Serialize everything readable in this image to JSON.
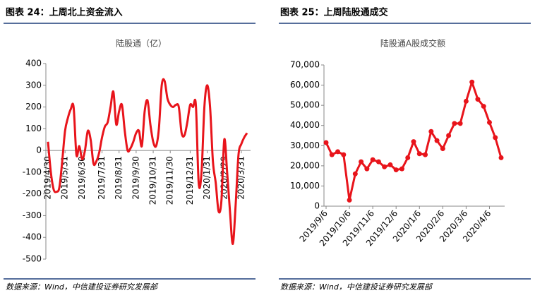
{
  "figures": [
    {
      "heading": "图表 24：上周北上资金流入",
      "source": "数据来源：Wind，中信建投证券研究发展部"
    },
    {
      "heading": "图表 25：上周陆股通成交",
      "source": "数据来源：Wind，中信建投证券研究发展部"
    }
  ],
  "chart_data": [
    {
      "type": "line",
      "title": "陆股通（亿）",
      "color": "#e8141b",
      "smooth": true,
      "categories": [
        "2019/4/30",
        null,
        null,
        null,
        null,
        null,
        "2019/5/31",
        null,
        null,
        null,
        null,
        null,
        "2019/6/30",
        null,
        null,
        null,
        null,
        null,
        null,
        "2019/7/31",
        null,
        null,
        null,
        null,
        null,
        "2019/8/31",
        null,
        null,
        null,
        null,
        null,
        "2019/9/30",
        null,
        null,
        null,
        null,
        null,
        "2019/10/31",
        null,
        null,
        null,
        null,
        null,
        "2019/11/30",
        null,
        null,
        null,
        null,
        null,
        null,
        "2019/12/31",
        null,
        null,
        null,
        null,
        null,
        "2020/1/31",
        null,
        null,
        null,
        null,
        null,
        "2020/2/29",
        null,
        null,
        null,
        null,
        null,
        "2020/3/31",
        null,
        null
      ],
      "values": [
        40,
        -100,
        -180,
        -190,
        -170,
        -50,
        90,
        150,
        190,
        200,
        -20,
        20,
        -40,
        0,
        90,
        50,
        -60,
        -50,
        -10,
        60,
        110,
        130,
        200,
        270,
        120,
        180,
        210,
        90,
        0,
        10,
        40,
        80,
        90,
        20,
        180,
        230,
        120,
        40,
        20,
        100,
        300,
        320,
        240,
        210,
        200,
        210,
        200,
        80,
        70,
        130,
        210,
        200,
        210,
        -150,
        -100,
        200,
        300,
        200,
        -50,
        -150,
        -280,
        -230,
        50,
        -100,
        -280,
        -430,
        -250,
        -20,
        30,
        60,
        80
      ],
      "ylim": [
        -500,
        400
      ],
      "yticks": [
        -500,
        -400,
        -300,
        -200,
        -100,
        0,
        100,
        200,
        300,
        400
      ]
    },
    {
      "type": "line",
      "title": "陆股通A股成交额",
      "color": "#e8141b",
      "markers": true,
      "categories": [
        "2019/9/6",
        null,
        null,
        null,
        "2019/10/6",
        null,
        null,
        null,
        "2019/11/6",
        null,
        null,
        null,
        "2019/12/6",
        null,
        null,
        null,
        "2020/1/6",
        null,
        null,
        null,
        "2020/2/6",
        null,
        null,
        null,
        "2020/3/6",
        null,
        null,
        null,
        "2020/4/6",
        null,
        null
      ],
      "values": [
        31500,
        25500,
        27000,
        25500,
        3000,
        16000,
        22000,
        18500,
        23000,
        22000,
        19500,
        20500,
        18000,
        18500,
        24000,
        32000,
        26000,
        25500,
        37000,
        32500,
        28500,
        35000,
        41000,
        41000,
        52000,
        61500,
        53000,
        49500,
        41500,
        34000,
        24000
      ],
      "ylim": [
        0,
        70000
      ],
      "yticks": [
        0,
        {
          "value": 10000,
          "label": "10,000"
        },
        {
          "value": 20000,
          "label": "20,000"
        },
        {
          "value": 30000,
          "label": "30,000"
        },
        {
          "value": 40000,
          "label": "40,000"
        },
        {
          "value": 50000,
          "label": "50,000"
        },
        {
          "value": 60000,
          "label": "60,000"
        },
        {
          "value": 70000,
          "label": "70,000"
        }
      ]
    }
  ]
}
